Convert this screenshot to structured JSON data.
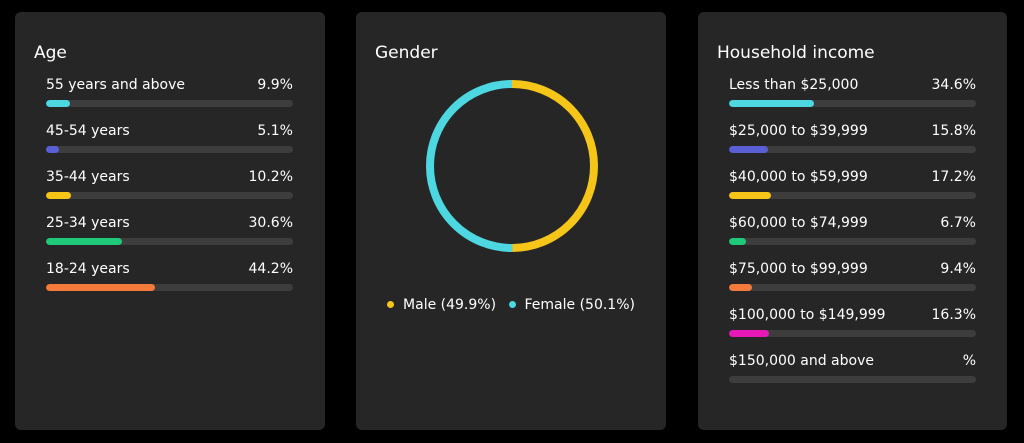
{
  "chart_data": [
    {
      "type": "bar",
      "title": "Age",
      "orientation": "horizontal",
      "categories": [
        "55 years and above",
        "45-54 years",
        "35-44 years",
        "25-34 years",
        "18-24 years"
      ],
      "value_labels": [
        "9.9%",
        "5.1%",
        "10.2%",
        "30.6%",
        "44.2%"
      ],
      "values": [
        9.9,
        5.1,
        10.2,
        30.6,
        44.2
      ],
      "colors": [
        "#4dd7e0",
        "#5b5fd6",
        "#f5c518",
        "#1fc97a",
        "#f47a3c"
      ],
      "xlim": [
        0,
        100
      ]
    },
    {
      "type": "pie",
      "title": "Gender",
      "style": "donut",
      "categories": [
        "Male",
        "Female"
      ],
      "values": [
        49.9,
        50.1
      ],
      "legend_labels": [
        "Male (49.9%)",
        "Female (50.1%)"
      ],
      "colors": [
        "#f5c518",
        "#4dd7e0"
      ],
      "legend": "bottom"
    },
    {
      "type": "bar",
      "title": "Household income",
      "orientation": "horizontal",
      "categories": [
        "Less than $25,000",
        "$25,000 to $39,999",
        "$40,000 to $59,999",
        "$60,000 to $74,999",
        "$75,000 to $99,999",
        "$100,000 to $149,999",
        "$150,000 and above"
      ],
      "value_labels": [
        "34.6%",
        "15.8%",
        "17.2%",
        "6.7%",
        "9.4%",
        "16.3%",
        "%"
      ],
      "values": [
        34.6,
        15.8,
        17.2,
        6.7,
        9.4,
        16.3,
        0
      ],
      "colors": [
        "#4dd7e0",
        "#5b5fd6",
        "#f5c518",
        "#1fc97a",
        "#f47a3c",
        "#e619b8",
        "#3d3d3d"
      ],
      "xlim": [
        0,
        100
      ]
    }
  ]
}
